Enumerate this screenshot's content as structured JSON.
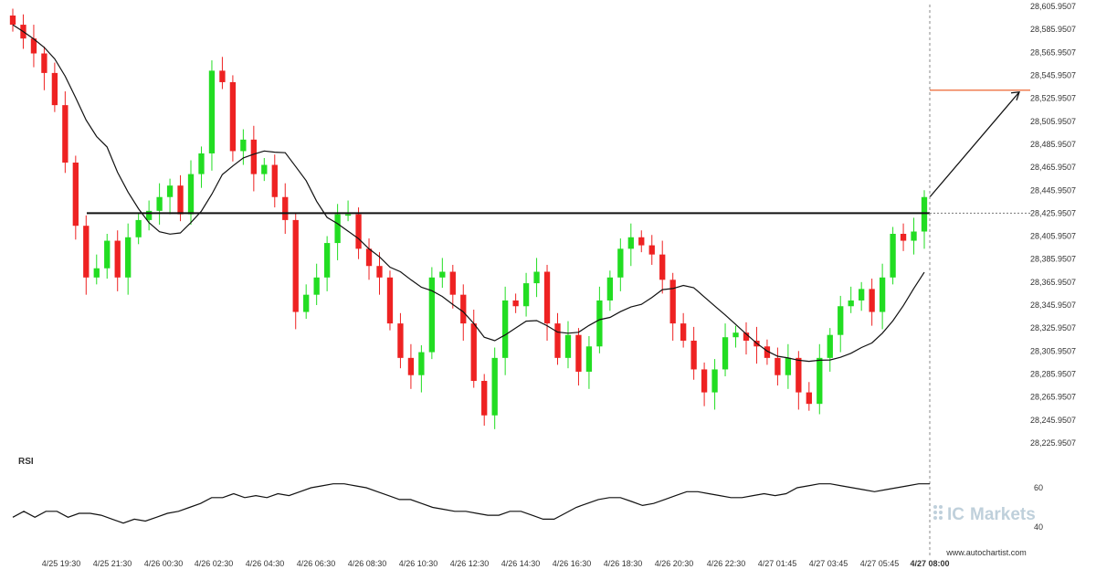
{
  "chart_data": [
    {
      "type": "candlestick",
      "title": "",
      "ylim": [
        28225.9507,
        28605.9507
      ],
      "y_ticks": [
        "28,605.9507",
        "28,585.9507",
        "28,565.9507",
        "28,545.9507",
        "28,525.9507",
        "28,505.9507",
        "28,485.9507",
        "28,465.9507",
        "28,445.9507",
        "28,425.9507",
        "28,405.9507",
        "28,385.9507",
        "28,365.9507",
        "28,345.9507",
        "28,325.9507",
        "28,305.9507",
        "28,285.9507",
        "28,265.9507",
        "28,245.9507",
        "28,225.9507"
      ],
      "x_ticks": [
        "4/25 19:30",
        "4/25 21:30",
        "4/26 00:30",
        "4/26 02:30",
        "4/26 04:30",
        "4/26 06:30",
        "4/26 08:30",
        "4/26 10:30",
        "4/26 12:30",
        "4/26 14:30",
        "4/26 16:30",
        "4/26 18:30",
        "4/26 20:30",
        "4/26 22:30",
        "4/27 01:45",
        "4/27 03:45",
        "4/27 05:45",
        "4/27 08:00"
      ],
      "grid": false,
      "up_color": "#22dd22",
      "down_color": "#ee2222",
      "ohlc_close_path": [
        28590,
        28578,
        28565,
        28548,
        28520,
        28470,
        28415,
        28370,
        28378,
        28402,
        28370,
        28405,
        28420,
        28428,
        28440,
        28450,
        28425,
        28460,
        28478,
        28550,
        28540,
        28480,
        28490,
        28460,
        28468,
        28440,
        28420,
        28340,
        28355,
        28370,
        28400,
        28425,
        28425,
        28395,
        28380,
        28370,
        28330,
        28300,
        28285,
        28305,
        28370,
        28375,
        28355,
        28330,
        28280,
        28250,
        28300,
        28350,
        28345,
        28365,
        28375,
        28330,
        28300,
        28320,
        28288,
        28310,
        28350,
        28370,
        28395,
        28405,
        28398,
        28390,
        28368,
        28330,
        28315,
        28290,
        28270,
        28290,
        28318,
        28322,
        28315,
        28310,
        28300,
        28285,
        28300,
        28270,
        28260,
        28300,
        28320,
        28345,
        28350,
        28360,
        28340,
        28370,
        28408,
        28402,
        28410,
        28440
      ],
      "resistance_level": 28425.9507,
      "forecast_level": 28533,
      "rsi": {
        "label": "RSI",
        "ticks": [
          "60",
          "40"
        ],
        "values": [
          45,
          48,
          45,
          48,
          48,
          45,
          47,
          47,
          46,
          44,
          42,
          44,
          43,
          45,
          47,
          48,
          50,
          52,
          55,
          55,
          57,
          55,
          56,
          55,
          57,
          56,
          58,
          60,
          61,
          62,
          62,
          61,
          60,
          58,
          56,
          54,
          54,
          52,
          50,
          49,
          48,
          48,
          47,
          46,
          46,
          48,
          48,
          46,
          44,
          44,
          47,
          50,
          52,
          54,
          55,
          55,
          53,
          51,
          52,
          54,
          56,
          58,
          58,
          57,
          56,
          55,
          55,
          56,
          57,
          56,
          57,
          60,
          61,
          62,
          62,
          61,
          60,
          59,
          58,
          59,
          60,
          61,
          62,
          62
        ]
      }
    }
  ],
  "watermark": {
    "prefix": "IC",
    "brand": "Markets"
  },
  "footer": {
    "source": "www.autochartist.com"
  }
}
